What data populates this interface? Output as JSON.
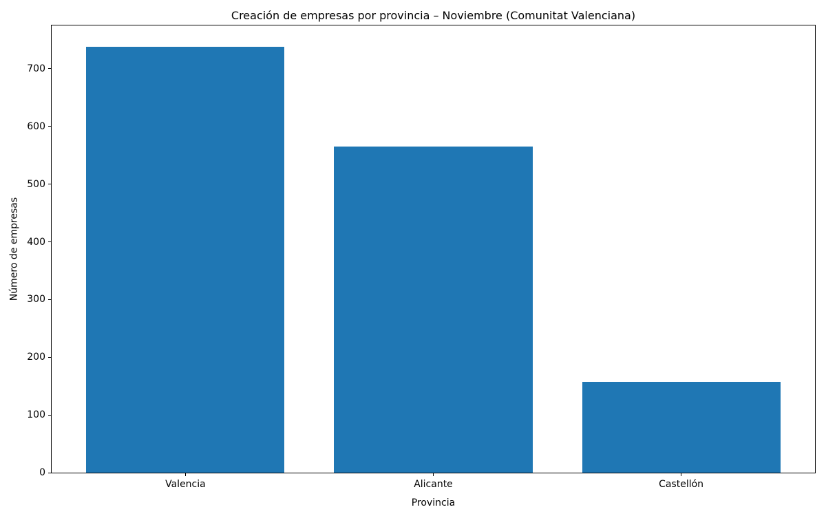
{
  "chart_data": {
    "type": "bar",
    "title": "Creación de empresas por provincia – Noviembre (Comunitat Valenciana)",
    "xlabel": "Provincia",
    "ylabel": "Número de empresas",
    "categories": [
      "Valencia",
      "Alicante",
      "Castellón"
    ],
    "values": [
      738,
      565,
      157
    ],
    "yticks": [
      0,
      100,
      200,
      300,
      400,
      500,
      600,
      700
    ],
    "ylim": [
      0,
      775
    ],
    "xlim": [
      -0.54,
      2.54
    ],
    "bar_width": 0.8,
    "bar_color": "#1f77b4",
    "grid": false,
    "legend": "none",
    "background_color": "#ffffff",
    "spine_color": "#000000"
  }
}
